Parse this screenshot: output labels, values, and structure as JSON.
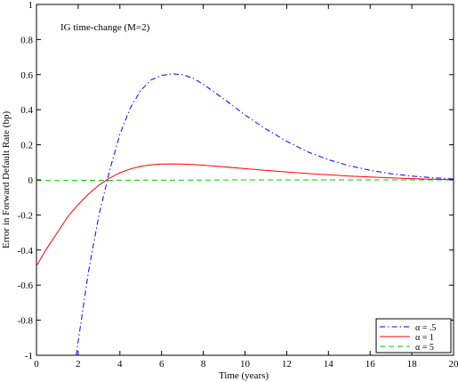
{
  "chart_data": {
    "type": "line",
    "annotation": "IG time-change (M=2)",
    "xlabel": "Time (years)",
    "ylabel": "Error in Forward Default Rate (bp)",
    "xlim": [
      0,
      20
    ],
    "ylim": [
      -1,
      1
    ],
    "xticks": [
      0,
      2,
      4,
      6,
      8,
      10,
      12,
      14,
      16,
      18,
      20
    ],
    "yticks": [
      -1,
      -0.8,
      -0.6,
      -0.4,
      -0.2,
      0,
      0.2,
      0.4,
      0.6,
      0.8,
      1
    ],
    "grid": false,
    "legend_position": "bottom-right",
    "series": [
      {
        "name": "α = .5",
        "color": "#0000ff",
        "dash": "dash-dot",
        "x": [
          1.9,
          2.5,
          3.0,
          3.5,
          4.0,
          4.5,
          5.0,
          5.5,
          6.0,
          6.5,
          7.0,
          7.5,
          8.0,
          9.0,
          10.0,
          11.0,
          12.0,
          13.0,
          14.0,
          15.0,
          16.0,
          17.0,
          18.0,
          19.0,
          20.0
        ],
        "y": [
          -1.0,
          -0.52,
          -0.2,
          0.05,
          0.26,
          0.41,
          0.51,
          0.57,
          0.595,
          0.605,
          0.6,
          0.58,
          0.545,
          0.46,
          0.37,
          0.29,
          0.22,
          0.16,
          0.115,
          0.08,
          0.055,
          0.035,
          0.022,
          0.012,
          0.005
        ]
      },
      {
        "name": "α = 1",
        "color": "#ff0000",
        "dash": "solid",
        "x": [
          0,
          0.5,
          1.0,
          1.5,
          2.0,
          2.5,
          3.0,
          3.5,
          4.0,
          4.5,
          5.0,
          5.5,
          6.0,
          6.5,
          7.0,
          7.5,
          8.0,
          9.0,
          10.0,
          11.0,
          12.0,
          13.0,
          14.0,
          15.0,
          16.0,
          17.0,
          18.0,
          19.0,
          20.0
        ],
        "y": [
          -0.49,
          -0.39,
          -0.3,
          -0.21,
          -0.14,
          -0.08,
          -0.03,
          0.01,
          0.04,
          0.062,
          0.077,
          0.086,
          0.09,
          0.091,
          0.09,
          0.088,
          0.084,
          0.074,
          0.064,
          0.054,
          0.045,
          0.036,
          0.029,
          0.022,
          0.016,
          0.011,
          0.007,
          0.004,
          0.002
        ]
      },
      {
        "name": "α = 5",
        "color": "#00cc00",
        "dash": "dashed",
        "x": [
          0,
          2,
          4,
          6,
          8,
          10,
          12,
          14,
          16,
          18,
          20
        ],
        "y": [
          -0.004,
          -0.003,
          -0.002,
          -0.001,
          -0.001,
          0,
          0,
          0,
          0,
          0,
          0
        ]
      }
    ]
  }
}
